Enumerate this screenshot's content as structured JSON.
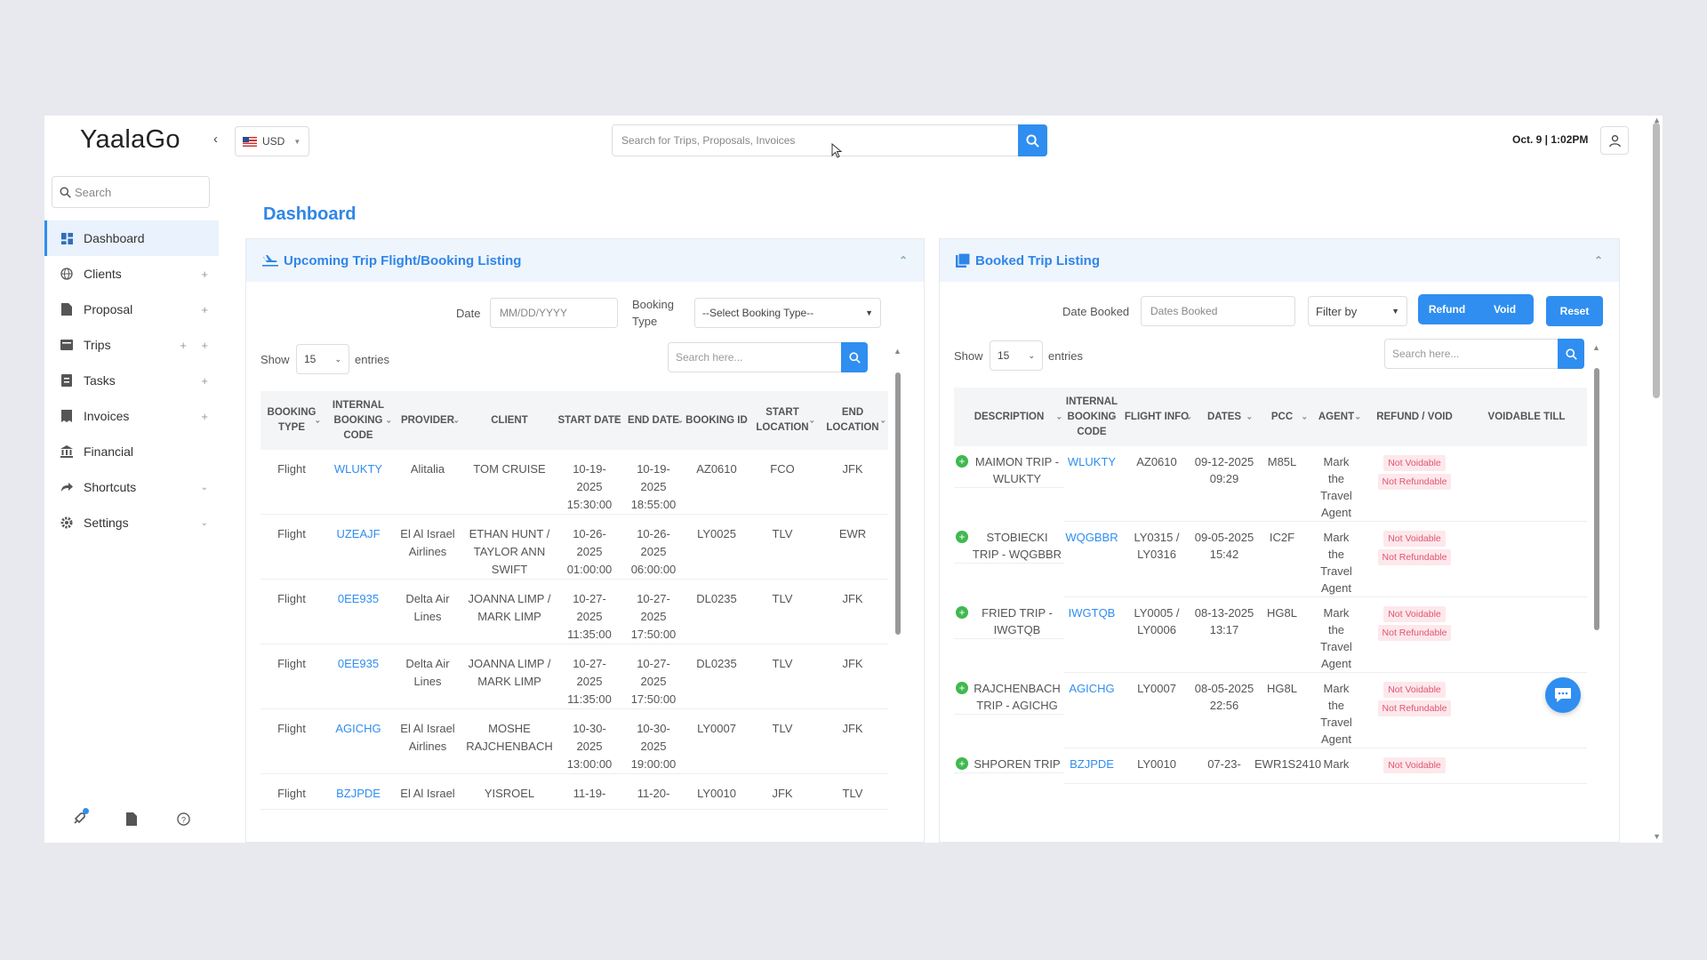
{
  "app": {
    "logo": "YaalaGo"
  },
  "topbar": {
    "currency": "USD",
    "search_placeholder": "Search for Trips, Proposals, Invoices",
    "datetime": "Oct. 9 | 1:02PM"
  },
  "sidebar": {
    "search_placeholder": "Search",
    "items": [
      {
        "label": "Dashboard"
      },
      {
        "label": "Clients"
      },
      {
        "label": "Proposal"
      },
      {
        "label": "Trips"
      },
      {
        "label": "Tasks"
      },
      {
        "label": "Invoices"
      },
      {
        "label": "Financial"
      },
      {
        "label": "Shortcuts"
      },
      {
        "label": "Settings"
      }
    ]
  },
  "main": {
    "title": "Dashboard"
  },
  "upcoming": {
    "title": "Upcoming Trip Flight/Booking Listing",
    "date_label": "Date",
    "date_placeholder": "MM/DD/YYYY",
    "booking_type_label": "Booking Type",
    "booking_type_value": "--Select Booking Type--",
    "show_label": "Show",
    "show_value": "15",
    "entries_label": "entries",
    "search_placeholder": "Search here...",
    "columns": [
      "BOOKING TYPE",
      "INTERNAL BOOKING CODE",
      "PROVIDER",
      "CLIENT",
      "START DATE",
      "END DATE",
      "BOOKING ID",
      "START LOCATION",
      "END LOCATION"
    ],
    "rows": [
      {
        "type": "Flight",
        "code": "WLUKTY",
        "provider": "Alitalia",
        "client": "TOM CRUISE",
        "start": "10-19-2025 15:30:00",
        "end": "10-19-2025 18:55:00",
        "id": "AZ0610",
        "from": "FCO",
        "to": "JFK"
      },
      {
        "type": "Flight",
        "code": "UZEAJF",
        "provider": "El Al Israel Airlines",
        "client": "ETHAN HUNT / TAYLOR ANN SWIFT",
        "start": "10-26-2025 01:00:00",
        "end": "10-26-2025 06:00:00",
        "id": "LY0025",
        "from": "TLV",
        "to": "EWR"
      },
      {
        "type": "Flight",
        "code": "0EE935",
        "provider": "Delta Air Lines",
        "client": "JOANNA LIMP / MARK LIMP",
        "start": "10-27-2025 11:35:00",
        "end": "10-27-2025 17:50:00",
        "id": "DL0235",
        "from": "TLV",
        "to": "JFK"
      },
      {
        "type": "Flight",
        "code": "0EE935",
        "provider": "Delta Air Lines",
        "client": "JOANNA LIMP / MARK LIMP",
        "start": "10-27-2025 11:35:00",
        "end": "10-27-2025 17:50:00",
        "id": "DL0235",
        "from": "TLV",
        "to": "JFK"
      },
      {
        "type": "Flight",
        "code": "AGICHG",
        "provider": "El Al Israel Airlines",
        "client": "MOSHE RAJCHENBACH",
        "start": "10-30-2025 13:00:00",
        "end": "10-30-2025 19:00:00",
        "id": "LY0007",
        "from": "TLV",
        "to": "JFK"
      },
      {
        "type": "Flight",
        "code": "BZJPDE",
        "provider": "El Al Israel",
        "client": "YISROEL",
        "start": "11-19-",
        "end": "11-20-",
        "id": "LY0010",
        "from": "JFK",
        "to": "TLV"
      }
    ]
  },
  "booked": {
    "title": "Booked Trip Listing",
    "date_booked_label": "Date Booked",
    "date_booked_placeholder": "Dates Booked",
    "filter_by": "Filter by",
    "refund_label": "Refund",
    "void_label": "Void",
    "reset_label": "Reset",
    "show_label": "Show",
    "show_value": "15",
    "entries_label": "entries",
    "search_placeholder": "Search here...",
    "columns": [
      "DESCRIPTION",
      "INTERNAL BOOKING CODE",
      "FLIGHT INFO",
      "DATES",
      "PCC",
      "AGENT",
      "REFUND / VOID",
      "VOIDABLE TILL"
    ],
    "rows": [
      {
        "desc": "MAIMON TRIP - WLUKTY",
        "code": "WLUKTY",
        "flight": "AZ0610",
        "date": "09-12-2025 09:29",
        "pcc": "M85L",
        "agent": "Mark the Travel Agent",
        "badge1": "Not Voidable",
        "badge2": "Not Refundable"
      },
      {
        "desc": "STOBIECKI TRIP - WQGBBR",
        "code": "WQGBBR",
        "flight": "LY0315 / LY0316",
        "date": "09-05-2025 15:42",
        "pcc": "IC2F",
        "agent": "Mark the Travel Agent",
        "badge1": "Not Voidable",
        "badge2": "Not Refundable"
      },
      {
        "desc": "FRIED TRIP - IWGTQB",
        "code": "IWGTQB",
        "flight": "LY0005 / LY0006",
        "date": "08-13-2025 13:17",
        "pcc": "HG8L",
        "agent": "Mark the Travel Agent",
        "badge1": "Not Voidable",
        "badge2": "Not Refundable"
      },
      {
        "desc": "RAJCHENBACH TRIP - AGICHG",
        "code": "AGICHG",
        "flight": "LY0007",
        "date": "08-05-2025 22:56",
        "pcc": "HG8L",
        "agent": "Mark the Travel Agent",
        "badge1": "Not Voidable",
        "badge2": "Not Refundable"
      },
      {
        "desc": "SHPOREN TRIP",
        "code": "BZJPDE",
        "flight": "LY0010",
        "date": "07-23-",
        "pcc": "EWR1S2410",
        "agent": "Mark",
        "badge1": "Not Voidable",
        "badge2": ""
      }
    ]
  }
}
